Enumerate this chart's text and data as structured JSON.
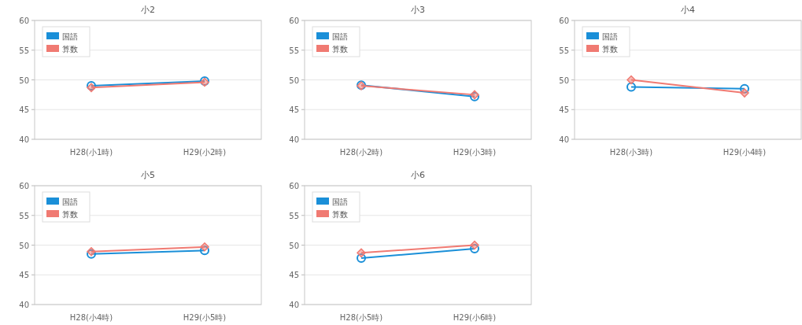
{
  "chart_data": [
    {
      "type": "line",
      "title": "小2",
      "categories": [
        "H28(小1時)",
        "H29(小2時)"
      ],
      "ylim": [
        40,
        60
      ],
      "yticks": [
        40,
        45,
        50,
        55,
        60
      ],
      "grid": "y",
      "legend": "top left",
      "series": [
        {
          "name": "国語",
          "color": "#1a8fd8",
          "marker": "circle",
          "values": [
            49.0,
            49.8
          ]
        },
        {
          "name": "算数",
          "color": "#f07a72",
          "marker": "diamond",
          "values": [
            48.7,
            49.6
          ]
        }
      ]
    },
    {
      "type": "line",
      "title": "小3",
      "categories": [
        "H28(小2時)",
        "H29(小3時)"
      ],
      "ylim": [
        40,
        60
      ],
      "yticks": [
        40,
        45,
        50,
        55,
        60
      ],
      "grid": "y",
      "legend": "top left",
      "series": [
        {
          "name": "国語",
          "color": "#1a8fd8",
          "marker": "circle",
          "values": [
            49.1,
            47.2
          ]
        },
        {
          "name": "算数",
          "color": "#f07a72",
          "marker": "diamond",
          "values": [
            49.0,
            47.5
          ]
        }
      ]
    },
    {
      "type": "line",
      "title": "小4",
      "categories": [
        "H28(小3時)",
        "H29(小4時)"
      ],
      "ylim": [
        40,
        60
      ],
      "yticks": [
        40,
        45,
        50,
        55,
        60
      ],
      "grid": "y",
      "legend": "top left",
      "series": [
        {
          "name": "国語",
          "color": "#1a8fd8",
          "marker": "circle",
          "values": [
            48.8,
            48.5
          ]
        },
        {
          "name": "算数",
          "color": "#f07a72",
          "marker": "diamond",
          "values": [
            50.0,
            47.8
          ]
        }
      ]
    },
    {
      "type": "line",
      "title": "小5",
      "categories": [
        "H28(小4時)",
        "H29(小5時)"
      ],
      "ylim": [
        40,
        60
      ],
      "yticks": [
        40,
        45,
        50,
        55,
        60
      ],
      "grid": "y",
      "legend": "top left",
      "series": [
        {
          "name": "国語",
          "color": "#1a8fd8",
          "marker": "circle",
          "values": [
            48.5,
            49.1
          ]
        },
        {
          "name": "算数",
          "color": "#f07a72",
          "marker": "diamond",
          "values": [
            48.9,
            49.7
          ]
        }
      ]
    },
    {
      "type": "line",
      "title": "小6",
      "categories": [
        "H28(小5時)",
        "H29(小6時)"
      ],
      "ylim": [
        40,
        60
      ],
      "yticks": [
        40,
        45,
        50,
        55,
        60
      ],
      "grid": "y",
      "legend": "top left",
      "series": [
        {
          "name": "国語",
          "color": "#1a8fd8",
          "marker": "circle",
          "values": [
            47.8,
            49.4
          ]
        },
        {
          "name": "算数",
          "color": "#f07a72",
          "marker": "diamond",
          "values": [
            48.7,
            50.0
          ]
        }
      ]
    }
  ]
}
